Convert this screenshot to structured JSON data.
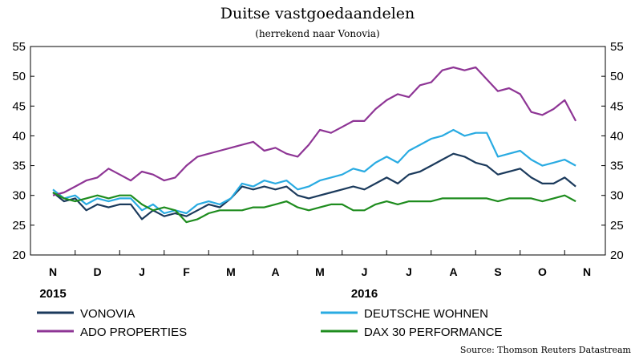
{
  "chart_data": {
    "type": "line",
    "title": "Duitse vastgoedaandelen",
    "subtitle": "(herrekend naar Vonovia)",
    "source": "Source: Thomson Reuters Datastream",
    "ylim": [
      20,
      55
    ],
    "yticks": [
      20,
      25,
      30,
      35,
      40,
      45,
      50,
      55
    ],
    "y_axis_left_and_right": true,
    "grid": false,
    "legend_position": "bottom",
    "x_months": [
      "N",
      "D",
      "J",
      "F",
      "M",
      "A",
      "M",
      "J",
      "J",
      "A",
      "S",
      "O",
      "N"
    ],
    "x_years": [
      {
        "label": "2015",
        "month_index": 0
      },
      {
        "label": "2016",
        "month_index": 7
      }
    ],
    "x_unit": "month index (0 = November 2015)",
    "x": [
      0,
      0.25,
      0.5,
      0.75,
      1,
      1.25,
      1.5,
      1.75,
      2,
      2.25,
      2.5,
      2.75,
      3,
      3.25,
      3.5,
      3.75,
      4,
      4.25,
      4.5,
      4.75,
      5,
      5.25,
      5.5,
      5.75,
      6,
      6.25,
      6.5,
      6.75,
      7,
      7.25,
      7.5,
      7.75,
      8,
      8.25,
      8.5,
      8.75,
      9,
      9.25,
      9.5,
      9.75,
      10,
      10.25,
      10.5,
      10.75,
      11,
      11.25,
      11.5,
      11.75
    ],
    "series": [
      {
        "name": "VONOVIA",
        "color": "#1b3a5c",
        "values": [
          30.5,
          29.0,
          29.5,
          27.5,
          28.5,
          28.0,
          28.5,
          28.5,
          26.0,
          27.5,
          26.5,
          27.0,
          26.5,
          27.5,
          28.5,
          28.0,
          29.5,
          31.5,
          31.0,
          31.5,
          31.0,
          31.5,
          30.0,
          29.5,
          30.0,
          30.5,
          31.0,
          31.5,
          31.0,
          32.0,
          33.0,
          32.0,
          33.5,
          34.0,
          35.0,
          36.0,
          37.0,
          36.5,
          35.5,
          35.0,
          33.5,
          34.0,
          34.5,
          33.0,
          32.0,
          32.0,
          33.0,
          31.5
        ]
      },
      {
        "name": "DEUTSCHE WOHNEN",
        "color": "#29abe2",
        "values": [
          31.0,
          29.5,
          30.0,
          28.5,
          29.5,
          29.0,
          29.5,
          29.5,
          27.5,
          28.5,
          27.0,
          27.5,
          27.0,
          28.5,
          29.0,
          28.5,
          29.5,
          32.0,
          31.5,
          32.5,
          32.0,
          32.5,
          31.0,
          31.5,
          32.5,
          33.0,
          33.5,
          34.5,
          34.0,
          35.5,
          36.5,
          35.5,
          37.5,
          38.5,
          39.5,
          40.0,
          41.0,
          40.0,
          40.5,
          40.5,
          36.5,
          37.0,
          37.5,
          36.0,
          35.0,
          35.5,
          36.0,
          35.0
        ]
      },
      {
        "name": "ADO PROPERTIES",
        "color": "#8e3595",
        "values": [
          30.0,
          30.5,
          31.5,
          32.5,
          33.0,
          34.5,
          33.5,
          32.5,
          34.0,
          33.5,
          32.5,
          33.0,
          35.0,
          36.5,
          37.0,
          37.5,
          38.0,
          38.5,
          39.0,
          37.5,
          38.0,
          37.0,
          36.5,
          38.5,
          41.0,
          40.5,
          41.5,
          42.5,
          42.5,
          44.5,
          46.0,
          47.0,
          46.5,
          48.5,
          49.0,
          51.0,
          51.5,
          51.0,
          51.5,
          49.5,
          47.5,
          48.0,
          47.0,
          44.0,
          43.5,
          44.5,
          46.0,
          42.5
        ]
      },
      {
        "name": "DAX 30 PERFORMANCE",
        "color": "#1e8c1e",
        "values": [
          30.5,
          29.5,
          29.0,
          29.5,
          30.0,
          29.5,
          30.0,
          30.0,
          28.5,
          27.5,
          28.0,
          27.5,
          25.5,
          26.0,
          27.0,
          27.5,
          27.5,
          27.5,
          28.0,
          28.0,
          28.5,
          29.0,
          28.0,
          27.5,
          28.0,
          28.5,
          28.5,
          27.5,
          27.5,
          28.5,
          29.0,
          28.5,
          29.0,
          29.0,
          29.0,
          29.5,
          29.5,
          29.5,
          29.5,
          29.5,
          29.0,
          29.5,
          29.5,
          29.5,
          29.0,
          29.5,
          30.0,
          29.0
        ]
      }
    ]
  }
}
